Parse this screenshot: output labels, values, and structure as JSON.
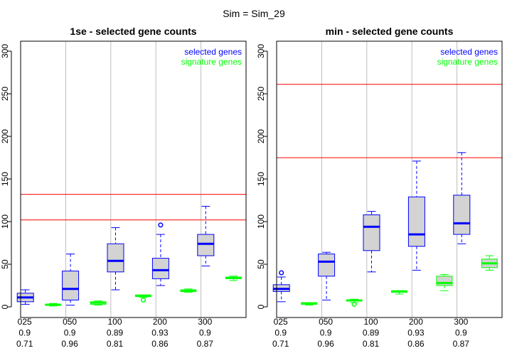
{
  "suptitle": "Sim = Sim_29",
  "colors": {
    "selected": "#0000ff",
    "signature": "#00ff00",
    "box_fill": "#d3d3d3",
    "hline": "#ff0000",
    "vline": "#bebebe",
    "axis": "#000000"
  },
  "chart_data": [
    {
      "type": "boxplot",
      "title": "1se - selected gene counts",
      "ylim": [
        0,
        310
      ],
      "yticks": [
        0,
        50,
        100,
        150,
        200,
        250,
        300
      ],
      "legend": {
        "position": "top-right",
        "entries": [
          "selected genes",
          "signature genes"
        ]
      },
      "hlines": [
        102,
        132
      ],
      "groups": [
        {
          "label": [
            "025",
            "0.9",
            "0.71"
          ],
          "selected": {
            "lo": 3,
            "q1": 6,
            "med": 11,
            "q3": 16,
            "hi": 20,
            "out": []
          },
          "signature": {
            "lo": 1,
            "q1": 2,
            "med": 2.5,
            "q3": 3,
            "hi": 4,
            "out": []
          }
        },
        {
          "label": [
            "050",
            "0.9",
            "0.96"
          ],
          "selected": {
            "lo": 2,
            "q1": 8,
            "med": 21,
            "q3": 42,
            "hi": 62,
            "out": []
          },
          "signature": {
            "lo": 2,
            "q1": 3,
            "med": 5,
            "q3": 6,
            "hi": 7,
            "out": []
          }
        },
        {
          "label": [
            "100",
            "0.89",
            "0.81"
          ],
          "selected": {
            "lo": 20,
            "q1": 41,
            "med": 54,
            "q3": 74,
            "hi": 93,
            "out": []
          },
          "signature": {
            "lo": 11,
            "q1": 12,
            "med": 13,
            "q3": 14,
            "hi": 14,
            "out": [
              8
            ]
          }
        },
        {
          "label": [
            "200",
            "0.93",
            "0.86"
          ],
          "selected": {
            "lo": 25,
            "q1": 33,
            "med": 43,
            "q3": 57,
            "hi": 85,
            "out": [
              96
            ]
          },
          "signature": {
            "lo": 17,
            "q1": 18,
            "med": 19,
            "q3": 20,
            "hi": 21,
            "out": []
          }
        },
        {
          "label": [
            "300",
            "0.9",
            "0.87"
          ],
          "selected": {
            "lo": 48,
            "q1": 60,
            "med": 74,
            "q3": 85,
            "hi": 118,
            "out": []
          },
          "signature": {
            "lo": 31,
            "q1": 33,
            "med": 34,
            "q3": 35,
            "hi": 36,
            "out": []
          }
        }
      ]
    },
    {
      "type": "boxplot",
      "title": "min - selected gene counts",
      "ylim": [
        0,
        310
      ],
      "yticks": [
        0,
        50,
        100,
        150,
        200,
        250,
        300
      ],
      "legend": {
        "position": "top-right",
        "entries": [
          "selected genes",
          "signature genes"
        ]
      },
      "hlines": [
        175,
        261
      ],
      "groups": [
        {
          "label": [
            "025",
            "0.9",
            "0.71"
          ],
          "selected": {
            "lo": 6,
            "q1": 18,
            "med": 21,
            "q3": 26,
            "hi": 35,
            "out": [
              40
            ]
          },
          "signature": {
            "lo": 2,
            "q1": 3,
            "med": 4,
            "q3": 5,
            "hi": 5,
            "out": []
          }
        },
        {
          "label": [
            "050",
            "0.9",
            "0.96"
          ],
          "selected": {
            "lo": 8,
            "q1": 36,
            "med": 53,
            "q3": 62,
            "hi": 64,
            "out": []
          },
          "signature": {
            "lo": 5,
            "q1": 7,
            "med": 7.5,
            "q3": 8,
            "hi": 9,
            "out": [
              3
            ]
          }
        },
        {
          "label": [
            "100",
            "0.89",
            "0.81"
          ],
          "selected": {
            "lo": 41,
            "q1": 66,
            "med": 94,
            "q3": 108,
            "hi": 112,
            "out": []
          },
          "signature": {
            "lo": 15,
            "q1": 17,
            "med": 18,
            "q3": 19,
            "hi": 19,
            "out": []
          }
        },
        {
          "label": [
            "200",
            "0.93",
            "0.86"
          ],
          "selected": {
            "lo": 43,
            "q1": 71,
            "med": 85,
            "q3": 129,
            "hi": 171,
            "out": []
          },
          "signature": {
            "lo": 19,
            "q1": 25,
            "med": 28,
            "q3": 36,
            "hi": 38,
            "out": []
          }
        },
        {
          "label": [
            "300",
            "0.9",
            "0.87"
          ],
          "selected": {
            "lo": 74,
            "q1": 85,
            "med": 98,
            "q3": 131,
            "hi": 181,
            "out": []
          },
          "signature": {
            "lo": 43,
            "q1": 46,
            "med": 51,
            "q3": 56,
            "hi": 60,
            "out": []
          }
        }
      ]
    }
  ]
}
